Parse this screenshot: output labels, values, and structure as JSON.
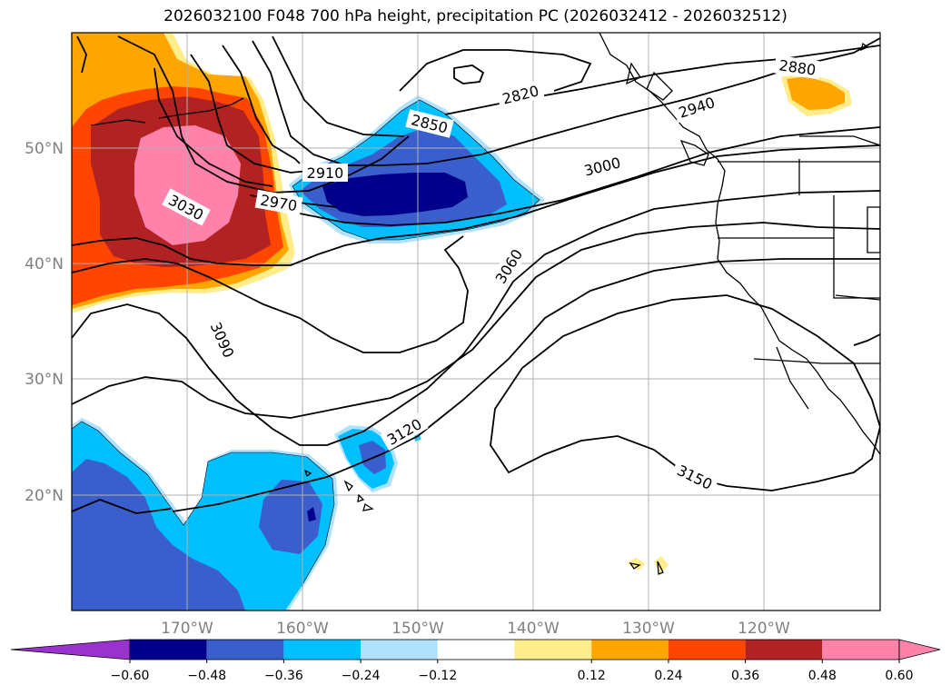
{
  "title": "2026032100 F048 700 hPa height, precipitation PC (2026032412 - 2026032512)",
  "map": {
    "lon_range": [
      -180,
      -110
    ],
    "lat_range": [
      10,
      60
    ],
    "lat_ticks": [
      "50°N",
      "40°N",
      "30°N",
      "20°N"
    ],
    "lon_ticks": [
      "170°W",
      "160°W",
      "150°W",
      "140°W",
      "130°W",
      "120°W"
    ],
    "contour_labels": [
      "2820",
      "2850",
      "2880",
      "2910",
      "2940",
      "2970",
      "3000",
      "3030",
      "3060",
      "3090",
      "3120",
      "3150"
    ],
    "colors": {
      "ocean_bg": "#ffffff",
      "coast": "#000000",
      "grid": "#b0b0b0"
    }
  },
  "colorbar": {
    "colors": [
      "#9a32cd",
      "#00008b",
      "#3a5fcd",
      "#00bfff",
      "#b0e2ff",
      "#ffffff",
      "#ffec8b",
      "#ffa500",
      "#ff4500",
      "#b22222",
      "#ff82ab",
      "#ff82ab"
    ],
    "tick_labels": [
      "−0.60",
      "−0.48",
      "−0.36",
      "−0.24",
      "−0.12",
      "0.12",
      "0.24",
      "0.36",
      "0.48",
      "0.60"
    ]
  }
}
